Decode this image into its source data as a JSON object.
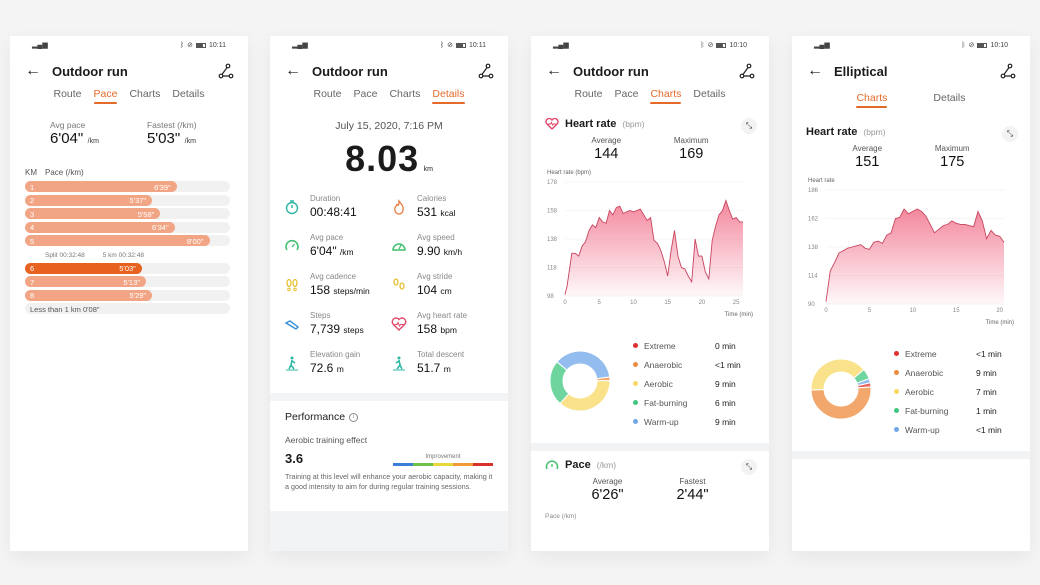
{
  "colors": {
    "accent": "#e46a2a",
    "bar": "#f2a585",
    "bar_fastest": "#e8621f",
    "hr_line": "#c8445e",
    "hr_fill": "#f27a93",
    "extreme": "#e02f2f",
    "anaerobic": "#ee8b3c",
    "aerobic": "#f7d862",
    "fat_burning": "#3fc77d",
    "warm_up": "#6fa7e8"
  },
  "screens": [
    {
      "status": {
        "time": "10:11"
      },
      "title": "Outdoor run",
      "tabs": [
        "Route",
        "Pace",
        "Charts",
        "Details"
      ],
      "active_tab": "Pace",
      "summary": {
        "avg_label": "Avg pace",
        "avg_value": "6'04\"",
        "avg_unit": "/km",
        "fast_label": "Fastest (/km)",
        "fast_value": "5'03\"",
        "fast_unit": "/km"
      },
      "table_header": {
        "km": "KM",
        "pace": "Pace (/km)"
      },
      "splits": [
        {
          "km": "1",
          "pace": "6'39\"",
          "pct": 74
        },
        {
          "km": "2",
          "pace": "5'37\"",
          "pct": 62
        },
        {
          "km": "3",
          "pace": "5'58\"",
          "pct": 66
        },
        {
          "km": "4",
          "pace": "6'34\"",
          "pct": 73
        },
        {
          "km": "5",
          "pace": "8'00\"",
          "pct": 90
        },
        {
          "km": "6",
          "pace": "5'03\"",
          "pct": 57,
          "fastest": true
        },
        {
          "km": "7",
          "pace": "5'13\"",
          "pct": 59
        },
        {
          "km": "8",
          "pace": "5'29\"",
          "pct": 62
        }
      ],
      "split_note": {
        "split": "Split 00:32:48",
        "five_km": "5 km 00:32:48"
      },
      "remainder": "Less than 1 km 0'08\""
    },
    {
      "status": {
        "time": "10:11"
      },
      "title": "Outdoor run",
      "tabs": [
        "Route",
        "Pace",
        "Charts",
        "Details"
      ],
      "active_tab": "Details",
      "date": "July 15, 2020, 7:16 PM",
      "distance": {
        "value": "8.03",
        "unit": "km"
      },
      "stats": [
        {
          "icon": "stopwatch-icon",
          "label": "Duration",
          "value": "00:48:41",
          "unit": ""
        },
        {
          "icon": "flame-icon",
          "label": "Calories",
          "value": "531",
          "unit": "kcal"
        },
        {
          "icon": "gauge-icon",
          "label": "Avg pace",
          "value": "6'04\"",
          "unit": "/km"
        },
        {
          "icon": "speedometer-icon",
          "label": "Avg speed",
          "value": "9.90",
          "unit": "km/h"
        },
        {
          "icon": "footprints-icon",
          "label": "Avg cadence",
          "value": "158",
          "unit": "steps/min"
        },
        {
          "icon": "stride-icon",
          "label": "Avg stride",
          "value": "104",
          "unit": "cm"
        },
        {
          "icon": "shoe-icon",
          "label": "Steps",
          "value": "7,739",
          "unit": "steps"
        },
        {
          "icon": "heart-rate-icon",
          "label": "Avg heart rate",
          "value": "158",
          "unit": "bpm"
        },
        {
          "icon": "hiker-up-icon",
          "label": "Elevation gain",
          "value": "72.6",
          "unit": "m"
        },
        {
          "icon": "hiker-down-icon",
          "label": "Total descent",
          "value": "51.7",
          "unit": "m"
        }
      ],
      "performance": {
        "title": "Performance",
        "subtitle": "Aerobic training effect",
        "value": "3.6",
        "scale_label": "Improvement",
        "description": "Training at this level will enhance your aerobic capacity, making it a good intensity to aim for during regular training sessions."
      }
    },
    {
      "status": {
        "time": "10:10"
      },
      "title": "Outdoor run",
      "tabs": [
        "Route",
        "Pace",
        "Charts",
        "Details"
      ],
      "active_tab": "Charts",
      "heart_rate": {
        "title": "Heart rate",
        "unit": "(bpm)",
        "avg_label": "Average",
        "avg": "144",
        "max_label": "Maximum",
        "max": "169",
        "ylabel": "Heart rate (bpm)",
        "xlabel": "Time (min)"
      },
      "zones": [
        {
          "name": "Extreme",
          "value": "0 min"
        },
        {
          "name": "Anaerobic",
          "value": "<1 min"
        },
        {
          "name": "Aerobic",
          "value": "9 min"
        },
        {
          "name": "Fat-burning",
          "value": "6 min"
        },
        {
          "name": "Warm-up",
          "value": "9 min"
        }
      ],
      "pace": {
        "title": "Pace",
        "unit": "(/km)",
        "avg_label": "Average",
        "avg": "6'26\"",
        "fast_label": "Fastest",
        "fast": "2'44\"",
        "ylabel": "Pace (/km)"
      }
    },
    {
      "status": {
        "time": "10:10"
      },
      "title": "Elliptical",
      "tabs": [
        "Charts",
        "Details"
      ],
      "active_tab": "Charts",
      "heart_rate": {
        "title": "Heart rate",
        "unit": "(bpm)",
        "avg_label": "Average",
        "avg": "151",
        "max_label": "Maximum",
        "max": "175",
        "ylabel": "Heart rate",
        "xlabel": "Time (min)"
      },
      "zones": [
        {
          "name": "Extreme",
          "value": "<1 min"
        },
        {
          "name": "Anaerobic",
          "value": "9 min"
        },
        {
          "name": "Aerobic",
          "value": "7 min"
        },
        {
          "name": "Fat-burning",
          "value": "1 min"
        },
        {
          "name": "Warm-up",
          "value": "<1 min"
        }
      ]
    }
  ],
  "chart_data": [
    {
      "type": "area",
      "title": "Heart rate (bpm) - Outdoor run",
      "xlabel": "Time (min)",
      "ylabel": "Heart rate (bpm)",
      "x_ticks": [
        0,
        5,
        10,
        15,
        20,
        25
      ],
      "y_ticks": [
        98,
        118,
        138,
        158,
        178
      ],
      "ylim": [
        98,
        178
      ],
      "x": [
        0,
        0.3,
        1,
        1.5,
        2,
        2.5,
        3,
        3.5,
        4,
        4.5,
        5,
        5.5,
        6,
        6.5,
        7,
        7.5,
        8,
        8.5,
        9,
        9.5,
        10,
        10.5,
        11,
        11.5,
        12,
        12.5,
        13,
        13.5,
        14,
        14.5,
        15,
        15.5,
        16,
        16.5,
        17,
        17.5,
        18,
        18.5,
        19,
        19.5,
        20,
        20.5,
        21,
        21.5,
        22,
        22.5,
        23,
        23.5,
        24,
        24.5,
        25,
        25.5,
        26
      ],
      "values": [
        99,
        105,
        128,
        128,
        126,
        133,
        136,
        144,
        148,
        146,
        153,
        150,
        149,
        158,
        155,
        160,
        161,
        156,
        157,
        158,
        157,
        158,
        159,
        155,
        151,
        153,
        137,
        135,
        130,
        122,
        112,
        130,
        144,
        126,
        118,
        117,
        112,
        108,
        138,
        126,
        126,
        115,
        110,
        137,
        147,
        155,
        158,
        165,
        158,
        152,
        153,
        150,
        150
      ]
    },
    {
      "type": "donut",
      "title": "Heart rate zones - Outdoor run",
      "categories": [
        "Extreme",
        "Anaerobic",
        "Aerobic",
        "Fat-burning",
        "Warm-up"
      ],
      "values": [
        0,
        0.5,
        9,
        6,
        9
      ],
      "unit": "min"
    },
    {
      "type": "area",
      "title": "Heart rate - Elliptical",
      "xlabel": "Time (min)",
      "ylabel": "Heart rate",
      "x_ticks": [
        0,
        5,
        10,
        15,
        20
      ],
      "y_ticks": [
        90,
        114,
        138,
        162,
        186
      ],
      "ylim": [
        90,
        186
      ],
      "x": [
        0,
        0.5,
        1,
        1.5,
        2,
        2.5,
        3,
        3.5,
        4,
        4.5,
        5,
        5.5,
        6,
        6.5,
        7,
        7.5,
        8,
        8.5,
        9,
        9.5,
        10,
        10.5,
        11,
        11.5,
        12,
        12.5,
        13,
        13.5,
        14,
        14.5,
        15,
        15.5,
        16,
        16.5,
        17,
        17.5,
        18,
        18.5,
        19,
        19.5,
        20,
        20.5
      ],
      "values": [
        92,
        118,
        125,
        133,
        135,
        137,
        138,
        139,
        140,
        137,
        136,
        142,
        143,
        141,
        148,
        150,
        162,
        163,
        170,
        166,
        168,
        170,
        168,
        164,
        157,
        150,
        153,
        156,
        157,
        160,
        158,
        157,
        157,
        156,
        155,
        168,
        160,
        145,
        152,
        148,
        147,
        142
      ],
      "max": 175
    },
    {
      "type": "donut",
      "title": "Heart rate zones - Elliptical",
      "categories": [
        "Extreme",
        "Anaerobic",
        "Aerobic",
        "Fat-burning",
        "Warm-up"
      ],
      "values": [
        0.4,
        9,
        7,
        1,
        0.4
      ],
      "unit": "min"
    }
  ]
}
